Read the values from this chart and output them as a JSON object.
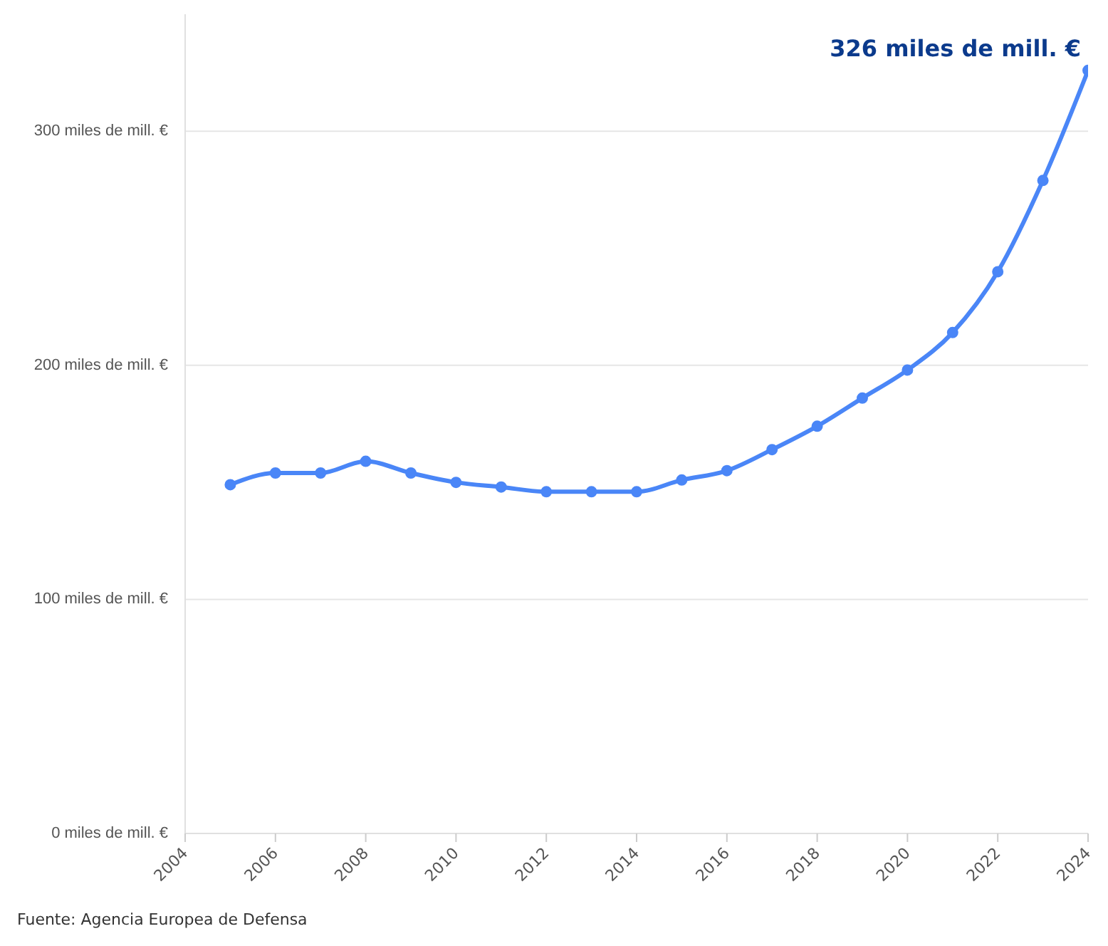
{
  "chart_data": {
    "type": "line",
    "x": [
      2005,
      2006,
      2007,
      2008,
      2009,
      2010,
      2011,
      2012,
      2013,
      2014,
      2015,
      2016,
      2017,
      2018,
      2019,
      2020,
      2021,
      2022,
      2023,
      2024
    ],
    "series": [
      {
        "color": "#4a86f7",
        "values": [
          149,
          154,
          154,
          159,
          154,
          150,
          148,
          146,
          146,
          146,
          151,
          155,
          164,
          174,
          186,
          198,
          214,
          240,
          279,
          326
        ]
      }
    ],
    "xlim": [
      2004,
      2024
    ],
    "xticks": [
      2004,
      2006,
      2008,
      2010,
      2012,
      2014,
      2016,
      2018,
      2020,
      2022,
      2024
    ],
    "ylim": [
      0,
      350
    ],
    "yticks": [
      {
        "value": 0,
        "label": "0 miles de mill. €"
      },
      {
        "value": 100,
        "label": "100 miles de mill. €"
      },
      {
        "value": 200,
        "label": "200 miles de mill. €"
      },
      {
        "value": 300,
        "label": "300 miles de mill. €"
      }
    ],
    "grid": "y",
    "marker": "circle",
    "line_style": "solid",
    "legend": false,
    "annotations": [
      {
        "text": "326 miles de mill. €",
        "x": 2024,
        "y": 326
      },
      "Fuente: Agencia Europea de Defensa"
    ]
  }
}
